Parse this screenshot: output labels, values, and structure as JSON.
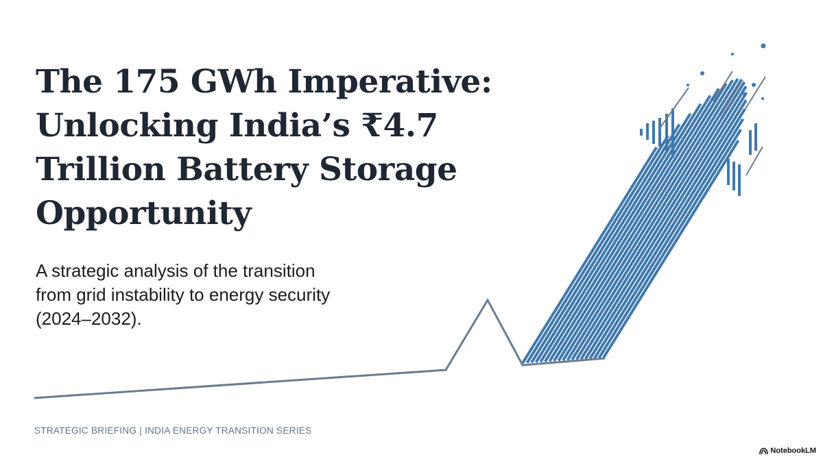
{
  "slide": {
    "title_lines": [
      "The 175 GWh Imperative:",
      "Unlocking India’s ₹4.7",
      "Trillion Battery Storage",
      "Opportunity"
    ],
    "subtitle_lines": [
      "A strategic analysis of the transition",
      "from grid instability to energy security",
      "(2024–2032)."
    ],
    "footer": "STRATEGIC BRIEFING | INDIA ENERGY TRANSITION SERIES",
    "brand": "NotebookLM",
    "brand_icon": "notebooklm-logo-icon"
  },
  "colors": {
    "title": "#1f2733",
    "subtitle": "#1c1c1c",
    "footer": "#5f7285",
    "baseline": "#6a7c8e",
    "growth": "#3f78ad"
  }
}
